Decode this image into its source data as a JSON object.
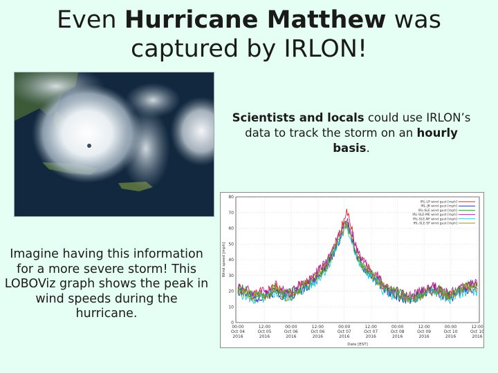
{
  "slide": {
    "title_pre": "Even ",
    "title_bold": "Hurricane Matthew",
    "title_post": " was captured by IRLON!",
    "right_bold": "Scientists and locals",
    "right_rest1": " could use IRLON’s data to track the storm on an ",
    "right_bold2": "hourly basis",
    "right_end": ".",
    "left_caption": "Imagine having this information for a more severe storm! This LOBOViz graph shows the peak in wind speeds during the hurricane."
  },
  "colors": {
    "background": "#e5fff5"
  },
  "chart_data": {
    "type": "line",
    "xlabel": "Date [EST]",
    "ylabel": "Wind speed [mph]",
    "ylim": [
      0,
      80
    ],
    "y_ticks": [
      "0",
      "10",
      "20",
      "30",
      "40",
      "50",
      "60",
      "70",
      "80"
    ],
    "x_ticks": [
      {
        "time": "00:00",
        "date": "Oct 04",
        "year": "2016"
      },
      {
        "time": "12:00",
        "date": "Oct 05",
        "year": "2016"
      },
      {
        "time": "00:00",
        "date": "Oct 06",
        "year": "2016"
      },
      {
        "time": "12:00",
        "date": "Oct 06",
        "year": "2016"
      },
      {
        "time": "00:00",
        "date": "Oct 07",
        "year": "2016"
      },
      {
        "time": "12:00",
        "date": "Oct 07",
        "year": "2016"
      },
      {
        "time": "00:00",
        "date": "Oct 08",
        "year": "2016"
      },
      {
        "time": "12:00",
        "date": "Oct 09",
        "year": "2016"
      },
      {
        "time": "00:00",
        "date": "Oct 10",
        "year": "2016"
      },
      {
        "time": "12:00",
        "date": "Oct 10",
        "year": "2016"
      }
    ],
    "grid": true,
    "legend_position": "top-right",
    "series": [
      {
        "name": "IRL-LP wind gust [mph]",
        "color": "#e0202a",
        "seed": 1,
        "values": [
          22,
          20,
          18,
          17,
          19,
          18,
          21,
          23,
          20,
          18,
          19,
          22,
          24,
          26,
          28,
          33,
          36,
          42,
          50,
          60,
          72,
          58,
          44,
          38,
          35,
          30,
          27,
          22,
          20,
          19,
          17,
          16,
          15,
          18,
          19,
          21,
          22,
          20,
          18,
          17,
          19,
          21,
          22,
          24,
          23
        ]
      },
      {
        "name": "IRL-JB wind gust [mph]",
        "color": "#2030b0",
        "seed": 2,
        "values": [
          20,
          19,
          17,
          15,
          17,
          16,
          19,
          20,
          18,
          17,
          18,
          20,
          22,
          24,
          26,
          30,
          34,
          40,
          48,
          56,
          64,
          54,
          40,
          35,
          32,
          28,
          25,
          21,
          19,
          18,
          16,
          15,
          14,
          17,
          18,
          20,
          21,
          19,
          17,
          16,
          18,
          20,
          21,
          22,
          21
        ]
      },
      {
        "name": "IRL-SLE wind gust [mph]",
        "color": "#20a020",
        "seed": 3,
        "values": [
          21,
          21,
          19,
          16,
          18,
          17,
          20,
          21,
          19,
          18,
          19,
          21,
          23,
          25,
          27,
          31,
          35,
          41,
          49,
          57,
          62,
          55,
          42,
          36,
          33,
          29,
          26,
          22,
          21,
          20,
          18,
          17,
          16,
          18,
          19,
          21,
          22,
          21,
          19,
          18,
          20,
          22,
          23,
          24,
          23
        ]
      },
      {
        "name": "IRL-SLE-ME wind gust [mph]",
        "color": "#b020b0",
        "seed": 4,
        "values": [
          23,
          22,
          20,
          18,
          20,
          19,
          22,
          24,
          21,
          19,
          20,
          23,
          25,
          27,
          29,
          34,
          37,
          43,
          51,
          58,
          66,
          57,
          45,
          39,
          36,
          31,
          28,
          23,
          21,
          20,
          18,
          17,
          16,
          19,
          20,
          22,
          23,
          21,
          19,
          18,
          20,
          22,
          24,
          25,
          24
        ]
      },
      {
        "name": "IRL-SLE-NF wind gust [mph]",
        "color": "#18c8d8",
        "seed": 5,
        "values": [
          19,
          18,
          16,
          14,
          16,
          15,
          18,
          19,
          17,
          16,
          17,
          19,
          21,
          23,
          25,
          29,
          33,
          39,
          47,
          55,
          60,
          52,
          39,
          34,
          31,
          27,
          24,
          20,
          18,
          17,
          15,
          14,
          13,
          16,
          17,
          19,
          20,
          18,
          16,
          15,
          17,
          19,
          20,
          21,
          20
        ]
      },
      {
        "name": "IRL-SLE-SF wind gust [mph]",
        "color": "#909020",
        "seed": 6,
        "values": [
          21,
          20,
          18,
          16,
          18,
          17,
          20,
          22,
          19,
          17,
          18,
          21,
          23,
          25,
          27,
          32,
          35,
          41,
          49,
          57,
          63,
          55,
          43,
          37,
          34,
          29,
          26,
          22,
          20,
          19,
          17,
          16,
          15,
          17,
          18,
          20,
          21,
          20,
          18,
          17,
          19,
          21,
          22,
          23,
          22
        ]
      }
    ]
  }
}
